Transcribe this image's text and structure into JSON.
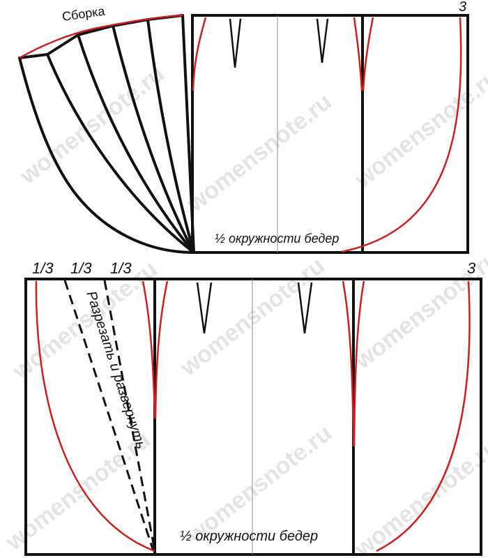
{
  "top_diagram": {
    "gather_label": "Сборка",
    "hip_label": "½ окружности бедер",
    "corner_number": "3"
  },
  "bottom_diagram": {
    "thirds": [
      "1/3",
      "1/3",
      "1/3"
    ],
    "corner_number": "3",
    "cut_label": "Разрезать и развернуть",
    "hip_label": "½ окружности бедер"
  },
  "watermark": "womensnote.ru",
  "colors": {
    "outline": "#111111",
    "curve": "#cc1f1f",
    "guide": "#888888",
    "watermark": "#e6e6e6"
  }
}
